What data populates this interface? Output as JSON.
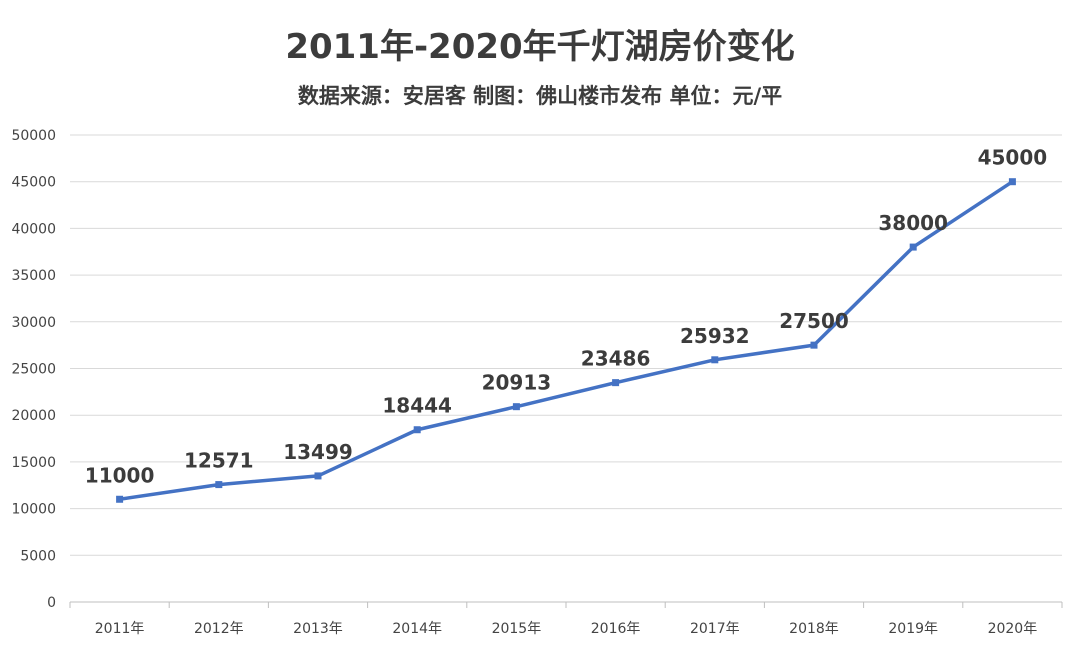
{
  "chart_data": {
    "type": "line",
    "title": "2011年-2020年千灯湖房价变化",
    "subtitle": "数据来源：安居客 制图：佛山楼市发布 单位：元/平",
    "categories": [
      "2011年",
      "2012年",
      "2013年",
      "2014年",
      "2015年",
      "2016年",
      "2017年",
      "2018年",
      "2019年",
      "2020年"
    ],
    "series": [
      {
        "values": [
          11000,
          12571,
          13499,
          18444,
          20913,
          23486,
          25932,
          27500,
          38000,
          45000
        ],
        "color": "#4472c4"
      }
    ],
    "data_labels": [
      "11000",
      "12571",
      "13499",
      "18444",
      "20913",
      "23486",
      "25932",
      "27500",
      "38000",
      "45000"
    ],
    "y_ticks": [
      "0",
      "5000",
      "10000",
      "15000",
      "20000",
      "25000",
      "30000",
      "35000",
      "40000",
      "45000",
      "50000"
    ],
    "ylim": [
      0,
      50000
    ],
    "grid": true,
    "legend": false
  }
}
